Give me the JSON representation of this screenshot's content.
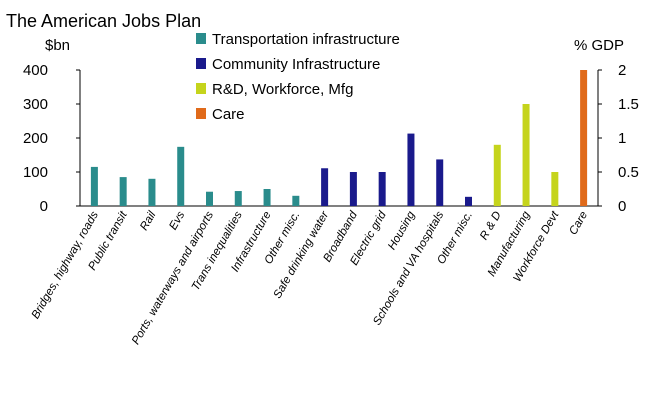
{
  "chart_data": {
    "type": "bar",
    "title": "The American Jobs Plan",
    "ylabel_left": "$bn",
    "ylabel_right": "% GDP",
    "ylim_left": [
      0,
      400
    ],
    "ylim_right": [
      0,
      2
    ],
    "yticks_left": [
      "0",
      "100",
      "200",
      "300",
      "400"
    ],
    "yticks_right": [
      "0",
      "0.5",
      "1",
      "1.5",
      "2"
    ],
    "grid": false,
    "legend_position": "top-center",
    "categories": [
      "Bridges, highway, roads",
      "Public transit",
      "Rail",
      "Evs",
      "Ports, waterways and airports",
      "Trans inequalities",
      "Infrastructure",
      "Other misc.",
      "Safe drinking water",
      "Broadband",
      "Electric grid",
      "Housing",
      "Schools and VA hospitals",
      "Other misc.",
      "R & D",
      "Manufacturing",
      "Workforce Devt",
      "Care"
    ],
    "series": [
      {
        "name": "Transportation infrastructure",
        "color": "#2a8c8c",
        "values": [
          115,
          85,
          80,
          174,
          42,
          44,
          50,
          30,
          null,
          null,
          null,
          null,
          null,
          null,
          null,
          null,
          null,
          null
        ]
      },
      {
        "name": "Community Infrastructure",
        "color": "#1a1a8c",
        "values": [
          null,
          null,
          null,
          null,
          null,
          null,
          null,
          null,
          111,
          100,
          100,
          213,
          137,
          27,
          null,
          null,
          null,
          null
        ]
      },
      {
        "name": "R&D, Workforce, Mfg",
        "color": "#c5d41c",
        "values": [
          null,
          null,
          null,
          null,
          null,
          null,
          null,
          null,
          null,
          null,
          null,
          null,
          null,
          null,
          180,
          300,
          100,
          null
        ]
      },
      {
        "name": "Care",
        "color": "#e06a1a",
        "values": [
          null,
          null,
          null,
          null,
          null,
          null,
          null,
          null,
          null,
          null,
          null,
          null,
          null,
          null,
          null,
          null,
          null,
          400
        ]
      }
    ]
  }
}
